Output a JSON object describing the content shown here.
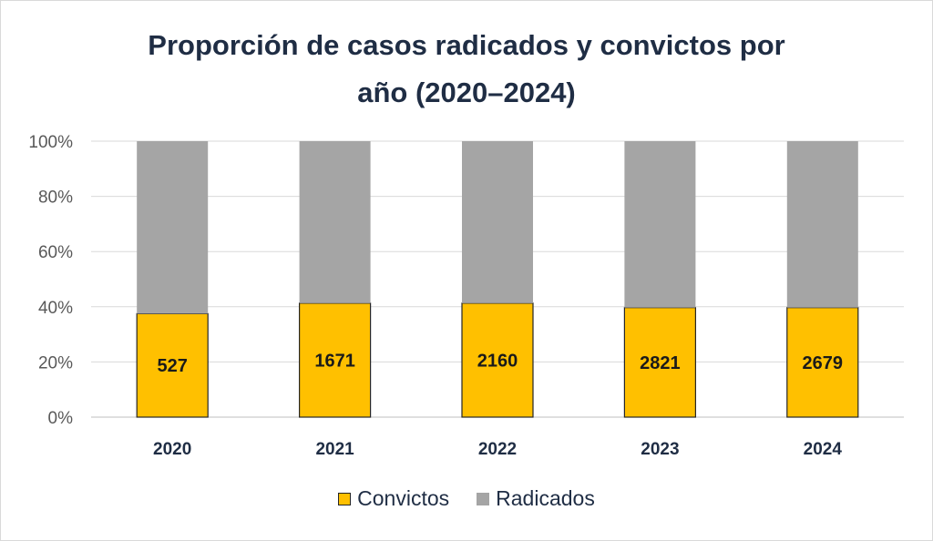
{
  "chart_data": {
    "type": "bar",
    "stacked": true,
    "percent_stacked": true,
    "title": [
      "Proporción de casos radicados y convictos por",
      "año (2020–2024)"
    ],
    "categories": [
      "2020",
      "2021",
      "2022",
      "2023",
      "2024"
    ],
    "yticks": [
      "0%",
      "20%",
      "40%",
      "60%",
      "80%",
      "100%"
    ],
    "ylim": [
      0,
      100
    ],
    "grid": true,
    "legend_position": "bottom",
    "series": [
      {
        "name": "Convictos",
        "color": "#FFC000",
        "share_percent": [
          37.5,
          41.3,
          41.3,
          39.7,
          39.7
        ],
        "labels": [
          "527",
          "1671",
          "2160",
          "2821",
          "2679"
        ]
      },
      {
        "name": "Radicados",
        "color": "#A5A5A5",
        "share_percent": [
          62.5,
          58.7,
          58.7,
          60.3,
          60.3
        ]
      }
    ]
  }
}
